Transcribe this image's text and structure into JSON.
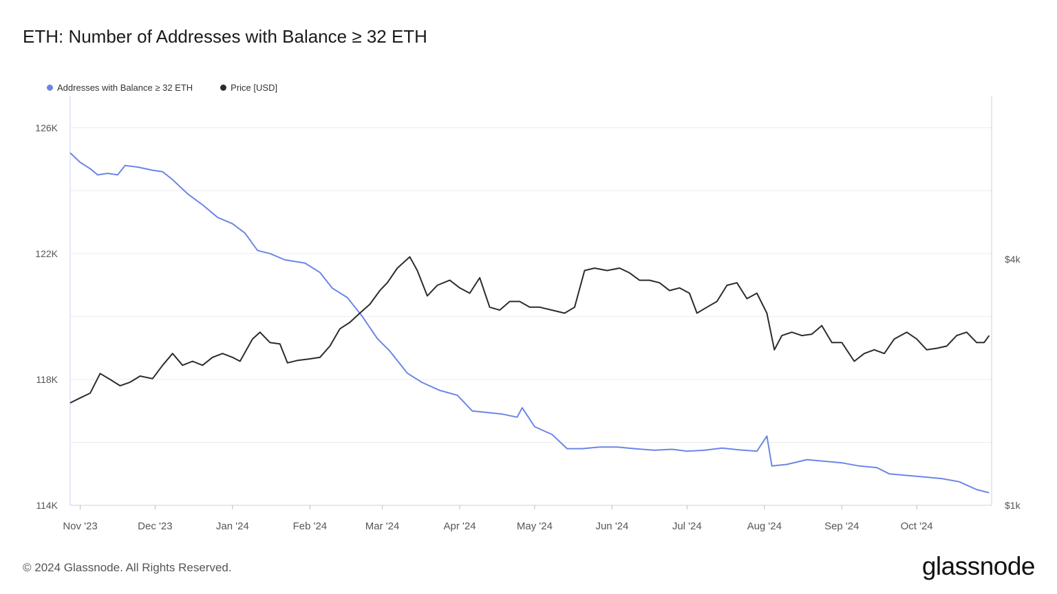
{
  "title": "ETH: Number of Addresses with Balance ≥ 32 ETH",
  "footer": "© 2024 Glassnode. All Rights Reserved.",
  "brand": "glassnode",
  "colors": {
    "addresses": "#6b85e8",
    "price": "#2b2b2b",
    "grid": "#ececec"
  },
  "chart_data": {
    "type": "line",
    "title": "ETH: Number of Addresses with Balance ≥ 32 ETH",
    "legend_position": "top-left",
    "grid": true,
    "x_ticks": [
      "Nov '23",
      "Dec '23",
      "Jan '24",
      "Feb '24",
      "Mar '24",
      "Apr '24",
      "May '24",
      "Jun '24",
      "Jul '24",
      "Aug '24",
      "Sep '24",
      "Oct '24"
    ],
    "y_left": {
      "ticks": [
        "114K",
        "118K",
        "122K",
        "126K"
      ],
      "range": [
        114000,
        127000
      ]
    },
    "y_right": {
      "ticks": [
        "$1k",
        "$4k"
      ],
      "scale": "log",
      "range": [
        1000,
        10000
      ]
    },
    "series": [
      {
        "name": "Addresses with Balance ≥ 32 ETH",
        "axis": "left",
        "points": [
          [
            "2023-10-28",
            125200
          ],
          [
            "2023-11-01",
            124900
          ],
          [
            "2023-11-05",
            124700
          ],
          [
            "2023-11-08",
            124500
          ],
          [
            "2023-11-12",
            124550
          ],
          [
            "2023-11-16",
            124500
          ],
          [
            "2023-11-19",
            124800
          ],
          [
            "2023-11-24",
            124750
          ],
          [
            "2023-11-30",
            124650
          ],
          [
            "2023-12-04",
            124600
          ],
          [
            "2023-12-08",
            124350
          ],
          [
            "2023-12-14",
            123900
          ],
          [
            "2023-12-20",
            123550
          ],
          [
            "2023-12-26",
            123150
          ],
          [
            "2024-01-01",
            122950
          ],
          [
            "2024-01-06",
            122650
          ],
          [
            "2024-01-11",
            122100
          ],
          [
            "2024-01-16",
            122000
          ],
          [
            "2024-01-22",
            121800
          ],
          [
            "2024-01-30",
            121700
          ],
          [
            "2024-02-05",
            121400
          ],
          [
            "2024-02-10",
            120900
          ],
          [
            "2024-02-16",
            120600
          ],
          [
            "2024-02-22",
            120000
          ],
          [
            "2024-02-28",
            119300
          ],
          [
            "2024-03-04",
            118900
          ],
          [
            "2024-03-11",
            118200
          ],
          [
            "2024-03-17",
            117900
          ],
          [
            "2024-03-24",
            117650
          ],
          [
            "2024-03-31",
            117500
          ],
          [
            "2024-04-06",
            117000
          ],
          [
            "2024-04-12",
            116950
          ],
          [
            "2024-04-18",
            116900
          ],
          [
            "2024-04-24",
            116800
          ],
          [
            "2024-04-26",
            117100
          ],
          [
            "2024-05-01",
            116500
          ],
          [
            "2024-05-08",
            116250
          ],
          [
            "2024-05-14",
            115800
          ],
          [
            "2024-05-20",
            115800
          ],
          [
            "2024-05-27",
            115850
          ],
          [
            "2024-06-03",
            115850
          ],
          [
            "2024-06-10",
            115800
          ],
          [
            "2024-06-18",
            115750
          ],
          [
            "2024-06-25",
            115780
          ],
          [
            "2024-07-01",
            115720
          ],
          [
            "2024-07-08",
            115750
          ],
          [
            "2024-07-15",
            115820
          ],
          [
            "2024-07-22",
            115760
          ],
          [
            "2024-07-29",
            115720
          ],
          [
            "2024-08-02",
            116200
          ],
          [
            "2024-08-04",
            115250
          ],
          [
            "2024-08-10",
            115300
          ],
          [
            "2024-08-18",
            115450
          ],
          [
            "2024-08-25",
            115400
          ],
          [
            "2024-09-01",
            115350
          ],
          [
            "2024-09-08",
            115250
          ],
          [
            "2024-09-15",
            115200
          ],
          [
            "2024-09-20",
            115000
          ],
          [
            "2024-09-27",
            114950
          ],
          [
            "2024-10-04",
            114900
          ],
          [
            "2024-10-11",
            114850
          ],
          [
            "2024-10-18",
            114750
          ],
          [
            "2024-10-25",
            114500
          ],
          [
            "2024-10-30",
            114400
          ]
        ]
      },
      {
        "name": "Price [USD]",
        "axis": "right",
        "points": [
          [
            "2023-10-28",
            1780
          ],
          [
            "2023-11-01",
            1830
          ],
          [
            "2023-11-05",
            1880
          ],
          [
            "2023-11-09",
            2100
          ],
          [
            "2023-11-13",
            2030
          ],
          [
            "2023-11-17",
            1960
          ],
          [
            "2023-11-21",
            2000
          ],
          [
            "2023-11-25",
            2070
          ],
          [
            "2023-11-30",
            2040
          ],
          [
            "2023-12-04",
            2200
          ],
          [
            "2023-12-08",
            2350
          ],
          [
            "2023-12-12",
            2200
          ],
          [
            "2023-12-16",
            2250
          ],
          [
            "2023-12-20",
            2200
          ],
          [
            "2023-12-24",
            2300
          ],
          [
            "2023-12-28",
            2350
          ],
          [
            "2024-01-01",
            2300
          ],
          [
            "2024-01-04",
            2250
          ],
          [
            "2024-01-09",
            2550
          ],
          [
            "2024-01-12",
            2650
          ],
          [
            "2024-01-16",
            2500
          ],
          [
            "2024-01-20",
            2480
          ],
          [
            "2024-01-23",
            2230
          ],
          [
            "2024-01-27",
            2260
          ],
          [
            "2024-02-01",
            2280
          ],
          [
            "2024-02-05",
            2300
          ],
          [
            "2024-02-09",
            2450
          ],
          [
            "2024-02-13",
            2700
          ],
          [
            "2024-02-17",
            2800
          ],
          [
            "2024-02-21",
            2950
          ],
          [
            "2024-02-25",
            3100
          ],
          [
            "2024-02-29",
            3350
          ],
          [
            "2024-03-03",
            3500
          ],
          [
            "2024-03-07",
            3800
          ],
          [
            "2024-03-12",
            4050
          ],
          [
            "2024-03-15",
            3750
          ],
          [
            "2024-03-19",
            3250
          ],
          [
            "2024-03-23",
            3450
          ],
          [
            "2024-03-28",
            3550
          ],
          [
            "2024-04-01",
            3400
          ],
          [
            "2024-04-05",
            3300
          ],
          [
            "2024-04-09",
            3600
          ],
          [
            "2024-04-13",
            3050
          ],
          [
            "2024-04-17",
            3000
          ],
          [
            "2024-04-21",
            3150
          ],
          [
            "2024-04-25",
            3150
          ],
          [
            "2024-04-29",
            3050
          ],
          [
            "2024-05-03",
            3050
          ],
          [
            "2024-05-08",
            3000
          ],
          [
            "2024-05-13",
            2950
          ],
          [
            "2024-05-17",
            3050
          ],
          [
            "2024-05-21",
            3750
          ],
          [
            "2024-05-25",
            3800
          ],
          [
            "2024-05-30",
            3750
          ],
          [
            "2024-06-04",
            3800
          ],
          [
            "2024-06-08",
            3700
          ],
          [
            "2024-06-12",
            3550
          ],
          [
            "2024-06-16",
            3550
          ],
          [
            "2024-06-20",
            3500
          ],
          [
            "2024-06-24",
            3350
          ],
          [
            "2024-06-28",
            3400
          ],
          [
            "2024-07-02",
            3300
          ],
          [
            "2024-07-05",
            2950
          ],
          [
            "2024-07-09",
            3050
          ],
          [
            "2024-07-13",
            3150
          ],
          [
            "2024-07-17",
            3450
          ],
          [
            "2024-07-21",
            3500
          ],
          [
            "2024-07-25",
            3200
          ],
          [
            "2024-07-29",
            3300
          ],
          [
            "2024-08-02",
            2950
          ],
          [
            "2024-08-05",
            2400
          ],
          [
            "2024-08-08",
            2600
          ],
          [
            "2024-08-12",
            2650
          ],
          [
            "2024-08-16",
            2600
          ],
          [
            "2024-08-20",
            2620
          ],
          [
            "2024-08-24",
            2750
          ],
          [
            "2024-08-28",
            2500
          ],
          [
            "2024-09-01",
            2500
          ],
          [
            "2024-09-06",
            2250
          ],
          [
            "2024-09-10",
            2350
          ],
          [
            "2024-09-14",
            2400
          ],
          [
            "2024-09-18",
            2350
          ],
          [
            "2024-09-22",
            2550
          ],
          [
            "2024-09-27",
            2650
          ],
          [
            "2024-10-01",
            2550
          ],
          [
            "2024-10-05",
            2400
          ],
          [
            "2024-10-09",
            2420
          ],
          [
            "2024-10-13",
            2450
          ],
          [
            "2024-10-17",
            2600
          ],
          [
            "2024-10-21",
            2650
          ],
          [
            "2024-10-25",
            2500
          ],
          [
            "2024-10-28",
            2500
          ],
          [
            "2024-10-30",
            2600
          ]
        ]
      }
    ]
  }
}
